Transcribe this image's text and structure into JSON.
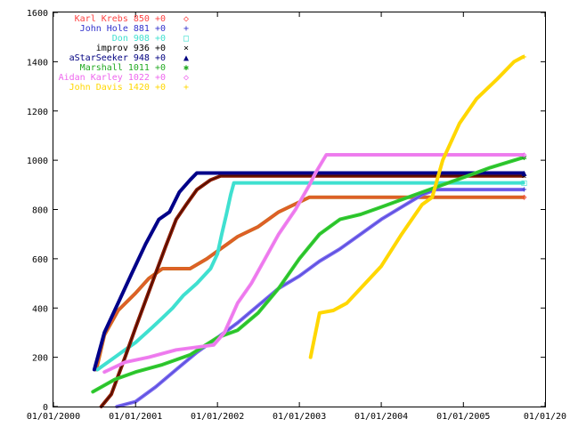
{
  "chart_data": {
    "type": "line",
    "title": "",
    "xlabel": "",
    "ylabel": "",
    "ylim": [
      0,
      1600
    ],
    "xlim": [
      "2000-01-01",
      "2005-12-31"
    ],
    "y_ticks": [
      0,
      200,
      400,
      600,
      800,
      1000,
      1200,
      1400,
      1600
    ],
    "x_ticks": [
      {
        "date": "2000-01-01",
        "label": "01/01/2000"
      },
      {
        "date": "2001-01-01",
        "label": "01/01/2001"
      },
      {
        "date": "2002-01-01",
        "label": "01/01/2002"
      },
      {
        "date": "2003-01-01",
        "label": "01/01/2003"
      },
      {
        "date": "2004-01-01",
        "label": "01/01/2004"
      },
      {
        "date": "2005-01-01",
        "label": "01/01/2005"
      },
      {
        "date": "2005-12-31",
        "label": "01/01/20"
      }
    ],
    "grid": false,
    "legend_position": "top-left",
    "series": [
      {
        "name": "Karl Krebs 850 +0",
        "color": "#d2691e",
        "legend_color": "#ff4444",
        "marker": "◇",
        "marker_color": "#ff4444",
        "points": [
          [
            "2000-07-10",
            150
          ],
          [
            "2000-08-15",
            290
          ],
          [
            "2000-10-15",
            390
          ],
          [
            "2001-01-01",
            460
          ],
          [
            "2001-03-01",
            520
          ],
          [
            "2001-05-01",
            560
          ],
          [
            "2001-07-01",
            560
          ],
          [
            "2001-09-01",
            560
          ],
          [
            "2001-11-15",
            600
          ],
          [
            "2002-01-15",
            640
          ],
          [
            "2002-04-01",
            690
          ],
          [
            "2002-07-01",
            730
          ],
          [
            "2002-10-01",
            790
          ],
          [
            "2003-01-01",
            830
          ],
          [
            "2003-02-15",
            850
          ],
          [
            "2003-06-01",
            850
          ],
          [
            "2004-01-01",
            850
          ],
          [
            "2005-01-01",
            850
          ],
          [
            "2005-09-25",
            850
          ]
        ]
      },
      {
        "name": "John Hole 881 +0",
        "color": "#7b68ee",
        "legend_color": "#3333cc",
        "marker": "+",
        "marker_color": "#3333cc",
        "points": [
          [
            "2000-10-10",
            0
          ],
          [
            "2001-01-01",
            20
          ],
          [
            "2001-04-01",
            80
          ],
          [
            "2001-07-01",
            150
          ],
          [
            "2001-10-01",
            220
          ],
          [
            "2002-01-01",
            280
          ],
          [
            "2002-04-01",
            340
          ],
          [
            "2002-07-01",
            410
          ],
          [
            "2002-10-01",
            480
          ],
          [
            "2003-01-01",
            530
          ],
          [
            "2003-04-01",
            590
          ],
          [
            "2003-07-01",
            640
          ],
          [
            "2003-10-01",
            700
          ],
          [
            "2004-01-01",
            760
          ],
          [
            "2004-04-01",
            810
          ],
          [
            "2004-07-01",
            860
          ],
          [
            "2004-09-01",
            881
          ],
          [
            "2005-01-01",
            881
          ],
          [
            "2005-09-25",
            881
          ]
        ]
      },
      {
        "name": "Don 908 +0",
        "color": "#40e0d0",
        "legend_color": "#40e0d0",
        "marker": "□",
        "marker_color": "#40e0d0",
        "points": [
          [
            "2000-07-15",
            150
          ],
          [
            "2000-09-15",
            190
          ],
          [
            "2000-11-15",
            230
          ],
          [
            "2001-01-01",
            260
          ],
          [
            "2001-03-15",
            320
          ],
          [
            "2001-05-01",
            360
          ],
          [
            "2001-06-15",
            400
          ],
          [
            "2001-08-01",
            450
          ],
          [
            "2001-10-01",
            500
          ],
          [
            "2001-12-01",
            560
          ],
          [
            "2002-01-01",
            620
          ],
          [
            "2002-01-20",
            700
          ],
          [
            "2002-02-10",
            780
          ],
          [
            "2002-03-01",
            860
          ],
          [
            "2002-03-15",
            908
          ],
          [
            "2003-01-01",
            908
          ],
          [
            "2004-01-01",
            908
          ],
          [
            "2005-01-01",
            908
          ],
          [
            "2005-09-25",
            908
          ]
        ]
      },
      {
        "name": "improv 936 +0",
        "color": "#8b1a00",
        "legend_color": "#000000",
        "marker": "×",
        "marker_color": "#000000",
        "points": [
          [
            "2000-08-01",
            0
          ],
          [
            "2000-09-15",
            50
          ],
          [
            "2000-11-15",
            200
          ],
          [
            "2001-01-01",
            320
          ],
          [
            "2001-03-15",
            500
          ],
          [
            "2001-05-15",
            650
          ],
          [
            "2001-07-01",
            760
          ],
          [
            "2001-08-15",
            820
          ],
          [
            "2001-10-01",
            880
          ],
          [
            "2001-12-01",
            920
          ],
          [
            "2002-01-15",
            936
          ],
          [
            "2003-01-01",
            936
          ],
          [
            "2004-01-01",
            936
          ],
          [
            "2005-01-01",
            936
          ],
          [
            "2005-09-25",
            936
          ]
        ]
      },
      {
        "name": "aStarSeeker 948 +0",
        "color": "#00008b",
        "legend_color": "#000080",
        "marker": "▲",
        "marker_color": "#000080",
        "points": [
          [
            "2000-07-01",
            150
          ],
          [
            "2000-08-15",
            300
          ],
          [
            "2000-10-15",
            420
          ],
          [
            "2000-12-15",
            540
          ],
          [
            "2001-02-15",
            660
          ],
          [
            "2001-04-15",
            760
          ],
          [
            "2001-06-01",
            790
          ],
          [
            "2001-07-15",
            870
          ],
          [
            "2001-09-01",
            920
          ],
          [
            "2001-10-01",
            948
          ],
          [
            "2002-01-01",
            948
          ],
          [
            "2003-01-01",
            948
          ],
          [
            "2004-01-01",
            948
          ],
          [
            "2005-01-01",
            948
          ],
          [
            "2005-09-25",
            948
          ]
        ]
      },
      {
        "name": "Marshall 1011 +0",
        "color": "#32cd32",
        "legend_color": "#22aa22",
        "marker": "✱",
        "marker_color": "#22aa22",
        "points": [
          [
            "2000-06-25",
            60
          ],
          [
            "2000-10-01",
            110
          ],
          [
            "2001-01-01",
            140
          ],
          [
            "2001-05-01",
            170
          ],
          [
            "2001-09-01",
            210
          ],
          [
            "2002-01-01",
            280
          ],
          [
            "2002-04-01",
            310
          ],
          [
            "2002-07-01",
            380
          ],
          [
            "2002-10-01",
            480
          ],
          [
            "2003-01-01",
            600
          ],
          [
            "2003-04-01",
            700
          ],
          [
            "2003-07-01",
            760
          ],
          [
            "2003-10-01",
            780
          ],
          [
            "2004-01-01",
            810
          ],
          [
            "2004-04-01",
            840
          ],
          [
            "2004-07-01",
            870
          ],
          [
            "2004-10-01",
            900
          ],
          [
            "2005-01-01",
            930
          ],
          [
            "2005-05-01",
            970
          ],
          [
            "2005-09-25",
            1011
          ]
        ]
      },
      {
        "name": "Aidan Karley 1022 +0",
        "color": "#ee82ee",
        "legend_color": "#ee66ee",
        "marker": "◇",
        "marker_color": "#ee66ee",
        "points": [
          [
            "2000-08-15",
            140
          ],
          [
            "2000-11-15",
            180
          ],
          [
            "2001-03-01",
            200
          ],
          [
            "2001-07-01",
            230
          ],
          [
            "2001-12-15",
            250
          ],
          [
            "2002-02-01",
            300
          ],
          [
            "2002-04-01",
            420
          ],
          [
            "2002-06-01",
            500
          ],
          [
            "2002-08-01",
            600
          ],
          [
            "2002-10-01",
            700
          ],
          [
            "2002-12-15",
            800
          ],
          [
            "2003-02-15",
            900
          ],
          [
            "2003-03-15",
            950
          ],
          [
            "2003-05-01",
            1022
          ],
          [
            "2004-01-01",
            1022
          ],
          [
            "2005-01-01",
            1022
          ],
          [
            "2005-09-25",
            1022
          ]
        ]
      },
      {
        "name": "John Davis 1420 +0",
        "color": "#ffd700",
        "legend_color": "#ffd700",
        "marker": "+",
        "marker_color": "#ffd700",
        "points": [
          [
            "2003-02-20",
            200
          ],
          [
            "2003-04-01",
            380
          ],
          [
            "2003-06-01",
            390
          ],
          [
            "2003-08-01",
            420
          ],
          [
            "2003-10-01",
            480
          ],
          [
            "2004-01-01",
            570
          ],
          [
            "2004-04-01",
            700
          ],
          [
            "2004-07-01",
            820
          ],
          [
            "2004-08-15",
            850
          ],
          [
            "2004-10-01",
            1000
          ],
          [
            "2004-12-15",
            1150
          ],
          [
            "2005-03-01",
            1250
          ],
          [
            "2005-06-01",
            1330
          ],
          [
            "2005-08-15",
            1400
          ],
          [
            "2005-09-25",
            1420
          ]
        ]
      }
    ]
  }
}
